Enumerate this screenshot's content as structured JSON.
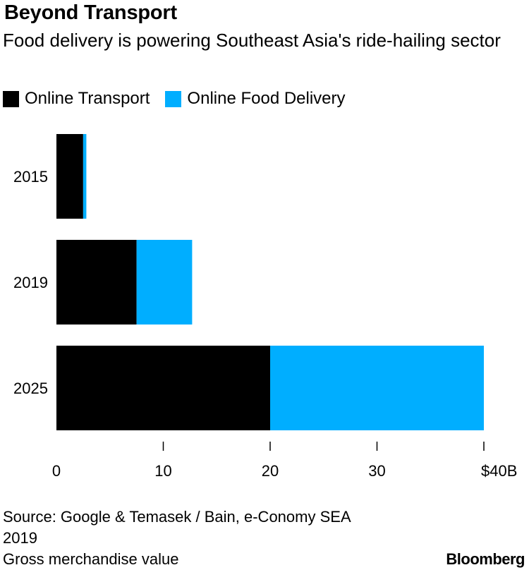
{
  "title": "Beyond Transport",
  "subtitle": "Food delivery is powering Southeast Asia's ride-hailing sector",
  "legend": [
    {
      "label": "Online Transport",
      "color": "#000000"
    },
    {
      "label": "Online Food Delivery",
      "color": "#00aeff"
    }
  ],
  "chart_data": {
    "type": "bar",
    "orientation": "horizontal",
    "stacked": true,
    "categories": [
      "2015",
      "2019",
      "2025"
    ],
    "series": [
      {
        "name": "Online Transport",
        "color": "#000000",
        "values": [
          2.5,
          7.5,
          20
        ]
      },
      {
        "name": "Online Food Delivery",
        "color": "#00aeff",
        "values": [
          0.3,
          5.2,
          20
        ]
      }
    ],
    "xlim": [
      0,
      40
    ],
    "xticks": [
      0,
      10,
      20,
      30,
      40
    ],
    "xtick_labels": [
      "0",
      "10",
      "20",
      "30",
      "$40B"
    ],
    "grid": false,
    "legend_position": "top-left"
  },
  "source": {
    "line1": "Source: Google & Temasek / Bain, e-Conomy SEA",
    "line2": "2019",
    "line3": "Gross merchandise value"
  },
  "brand": "Bloomberg"
}
